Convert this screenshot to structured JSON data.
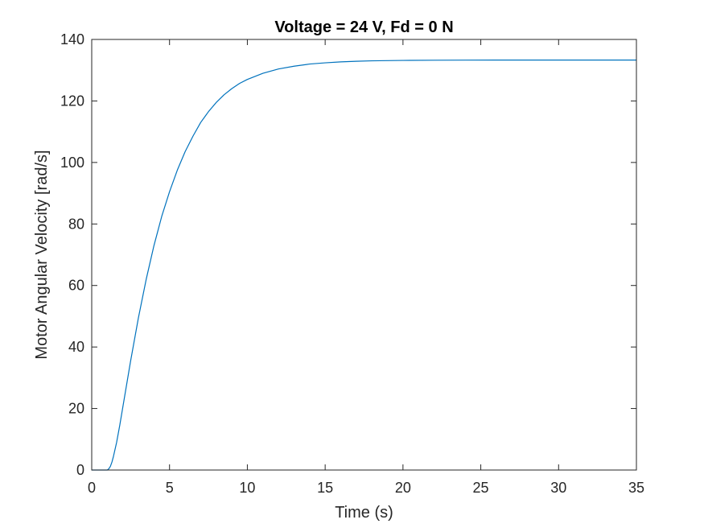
{
  "chart_data": {
    "type": "line",
    "title": "Voltage = 24 V, Fd = 0 N",
    "xlabel": "Time (s)",
    "ylabel": "Motor Angular Velocity [rad/s]",
    "xlim": [
      0,
      35
    ],
    "ylim": [
      0,
      140
    ],
    "xticks": [
      0,
      5,
      10,
      15,
      20,
      25,
      30,
      35
    ],
    "yticks": [
      0,
      20,
      40,
      60,
      80,
      100,
      120,
      140
    ],
    "grid": false,
    "legend": "none",
    "series": [
      {
        "color": "#0072BD",
        "x": [
          0,
          1.0,
          1.1,
          1.2,
          1.3,
          1.4,
          1.6,
          1.8,
          2,
          2.5,
          3,
          3.5,
          4,
          4.5,
          5,
          5.5,
          6,
          6.5,
          7,
          7.5,
          8,
          8.5,
          9,
          9.5,
          10,
          11,
          12,
          13,
          14,
          15,
          16,
          17,
          18,
          19,
          20,
          22,
          24,
          26,
          28,
          30,
          32,
          35
        ],
        "y": [
          0,
          0,
          0.4,
          1.2,
          2.6,
          4.5,
          9,
          14.5,
          20.5,
          35.5,
          49.5,
          62,
          73,
          82.5,
          90.5,
          97.5,
          103.5,
          108.5,
          113,
          116.5,
          119.5,
          122,
          124,
          125.7,
          127,
          129,
          130.4,
          131.3,
          132,
          132.4,
          132.7,
          132.9,
          133.05,
          133.12,
          133.18,
          133.24,
          133.28,
          133.3,
          133.3,
          133.3,
          133.3,
          133.3
        ]
      }
    ]
  }
}
